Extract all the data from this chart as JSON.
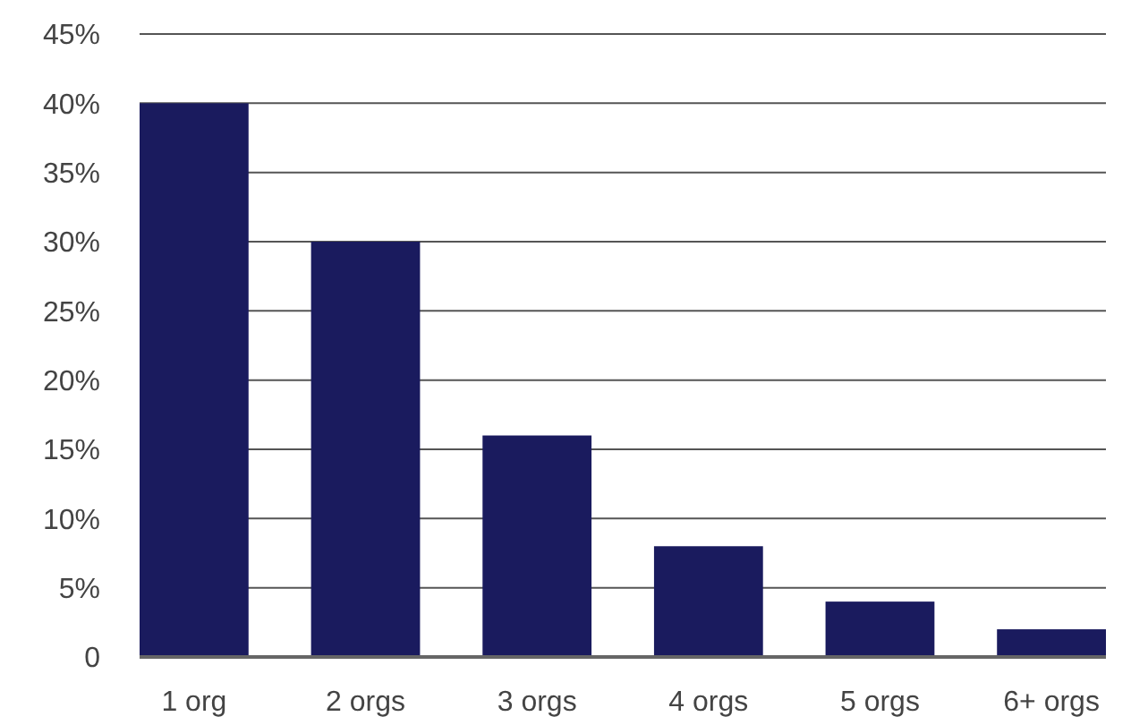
{
  "chart_data": {
    "type": "bar",
    "categories": [
      "1 org",
      "2 orgs",
      "3 orgs",
      "4 orgs",
      "5 orgs",
      "6+ orgs"
    ],
    "values": [
      40,
      30,
      16,
      8,
      4,
      2
    ],
    "color": "#1a1b5e",
    "ylim": [
      0,
      45
    ],
    "yticks": [
      0,
      {
        "value": 5,
        "label": "5%"
      },
      {
        "value": 10,
        "label": "10%"
      },
      {
        "value": 15,
        "label": "15%"
      },
      {
        "value": 20,
        "label": "20%"
      },
      {
        "value": 25,
        "label": "25%"
      },
      {
        "value": 30,
        "label": "30%"
      },
      {
        "value": 35,
        "label": "35%"
      },
      {
        "value": 40,
        "label": "40%"
      },
      {
        "value": 45,
        "label": "45%"
      }
    ],
    "grid": "y"
  }
}
